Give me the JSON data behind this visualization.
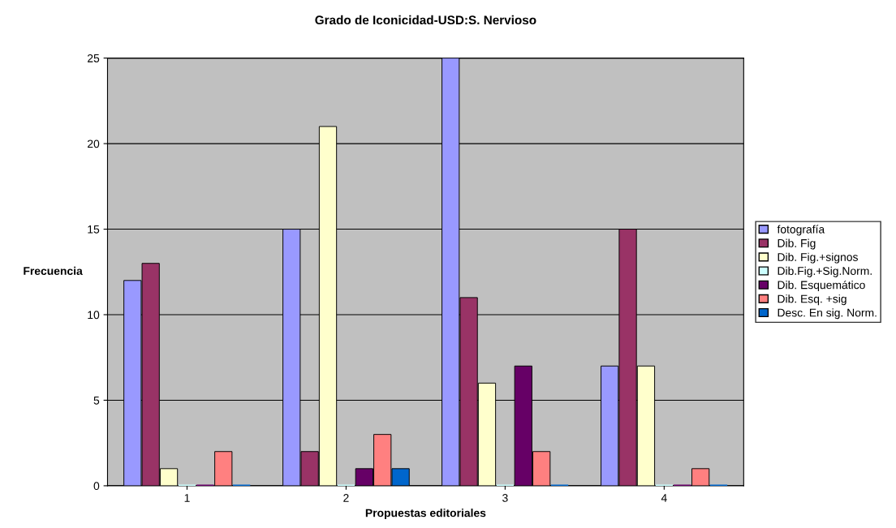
{
  "chart_data": {
    "type": "bar",
    "title": "Grado de Iconicidad-USD:S. Nervioso",
    "xlabel": "Propuestas editoriales",
    "ylabel": "Frecuencia",
    "categories": [
      "1",
      "2",
      "3",
      "4"
    ],
    "series": [
      {
        "name": "fotografía",
        "color": "#9999ff",
        "values": [
          12,
          15,
          25,
          7
        ]
      },
      {
        "name": "Dib. Fig",
        "color": "#993366",
        "values": [
          13,
          2,
          11,
          15
        ]
      },
      {
        "name": "Dib. Fig.+signos",
        "color": "#ffffcc",
        "values": [
          1,
          21,
          6,
          7
        ]
      },
      {
        "name": "Dib.Fig.+Sig.Norm.",
        "color": "#ccffff",
        "values": [
          0,
          0,
          0,
          0
        ]
      },
      {
        "name": "Dib. Esquemático",
        "color": "#660066",
        "values": [
          0,
          1,
          7,
          0
        ]
      },
      {
        "name": "Dib. Esq. +sig",
        "color": "#ff8080",
        "values": [
          2,
          3,
          2,
          1
        ]
      },
      {
        "name": "Desc. En sig. Norm.",
        "color": "#0066cc",
        "values": [
          0,
          1,
          0,
          0
        ]
      }
    ],
    "ylim": [
      0,
      25
    ],
    "yticks": [
      0,
      5,
      10,
      15,
      20,
      25
    ],
    "grid": "y",
    "legend": "right"
  }
}
